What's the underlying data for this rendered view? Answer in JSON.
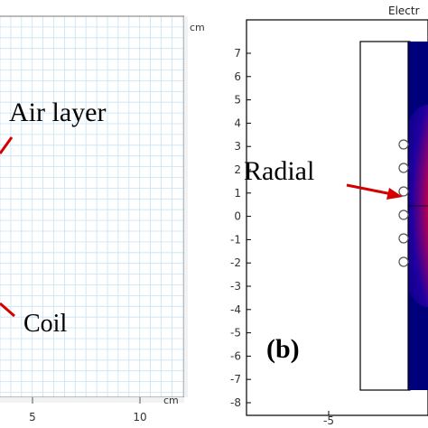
{
  "left_panel": {
    "unit_top": "cm",
    "unit_bottom": "cm",
    "x_ticks": [
      "5",
      "10"
    ],
    "labels": {
      "air_layer": "Air layer",
      "coil": "Coil"
    },
    "colors": {
      "grid": "#bfe0f2",
      "frame": "#7a7a7a",
      "arrow": "#d40000"
    }
  },
  "right_panel": {
    "title_fragment": "Electr",
    "y_ticks": [
      "7",
      "6",
      "5",
      "4",
      "3",
      "2",
      "1",
      "0",
      "-1",
      "-2",
      "-3",
      "-4",
      "-5",
      "-6",
      "-7",
      "-8"
    ],
    "x_ticks": [
      "-5"
    ],
    "labels": {
      "radial": "Radial",
      "panel_letter": "(b)"
    },
    "colors": {
      "field_dark": "#00007a",
      "field_hot": "#ffff00",
      "arrow": "#d40000",
      "frame": "#000000"
    }
  }
}
